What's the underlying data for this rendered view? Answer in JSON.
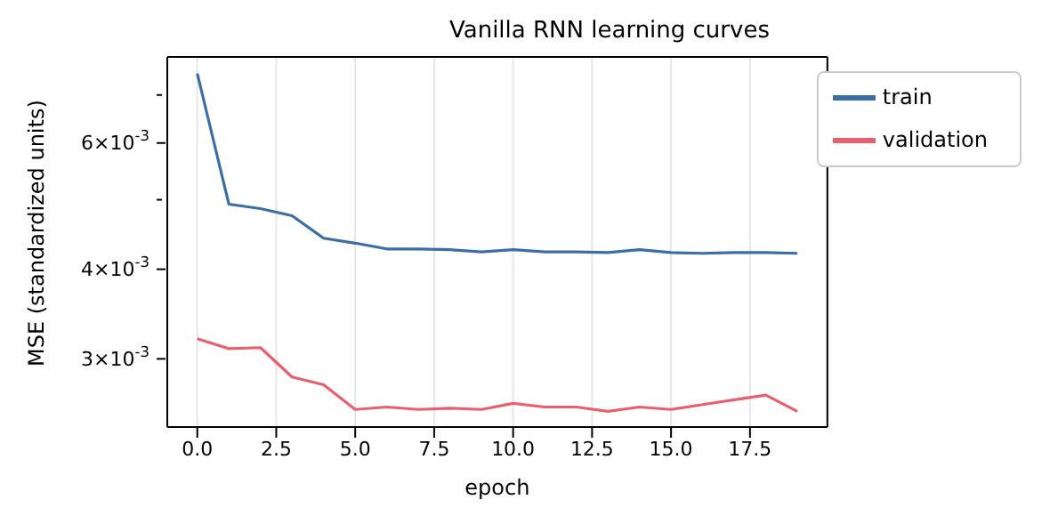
{
  "chart_data": {
    "type": "line",
    "title": "Vanilla RNN learning curves",
    "xlabel": "epoch",
    "ylabel": "MSE (standardized units)",
    "x": [
      0,
      1,
      2,
      3,
      4,
      5,
      6,
      7,
      8,
      9,
      10,
      11,
      12,
      13,
      14,
      15,
      16,
      17,
      18,
      19
    ],
    "series": [
      {
        "name": "train",
        "color": "#3a6ea5",
        "values": [
          0.0075,
          0.00493,
          0.00486,
          0.00475,
          0.00442,
          0.00435,
          0.00427,
          0.00427,
          0.00426,
          0.00423,
          0.00426,
          0.00423,
          0.00423,
          0.00422,
          0.00426,
          0.00422,
          0.00421,
          0.00422,
          0.00422,
          0.00421
        ]
      },
      {
        "name": "validation",
        "color": "#e8606e",
        "values": [
          0.0032,
          0.0031,
          0.00311,
          0.00283,
          0.00276,
          0.00255,
          0.00257,
          0.00255,
          0.00256,
          0.00255,
          0.0026,
          0.00257,
          0.00257,
          0.002535,
          0.00257,
          0.00255,
          0.00259,
          0.00263,
          0.00267,
          0.002535
        ]
      }
    ],
    "log": "y",
    "xlim": [
      -0.95,
      19.95
    ],
    "ylim": [
      0.00241,
      0.00791
    ],
    "xticks": [
      {
        "value": 0,
        "label": "0.0"
      },
      {
        "value": 2.5,
        "label": "2.5"
      },
      {
        "value": 5,
        "label": "5.0"
      },
      {
        "value": 7.5,
        "label": "7.5"
      },
      {
        "value": 10,
        "label": "10.0"
      },
      {
        "value": 12.5,
        "label": "12.5"
      },
      {
        "value": 15,
        "label": "15.0"
      },
      {
        "value": 17.5,
        "label": "17.5"
      }
    ],
    "yticks": [
      {
        "value": 0.003,
        "label": "3×10$^{-3}$"
      },
      {
        "value": 0.004,
        "label": "4×10$^{-3}$"
      },
      {
        "value": 0.005,
        "label": null
      },
      {
        "value": 0.006,
        "label": "6×10$^{-3}$"
      },
      {
        "value": 0.007,
        "label": null
      }
    ],
    "grid": "x",
    "legend": "top right",
    "marker": "none",
    "line_style": "solid"
  }
}
